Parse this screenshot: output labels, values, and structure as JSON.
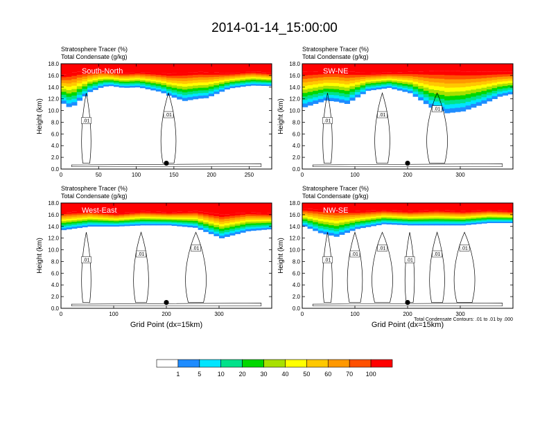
{
  "title": "2014-01-14_15:00:00",
  "footnote": "Total Condensate Contours: .01 to .01 by .000",
  "colorbar": {
    "colors": [
      "#ffffff",
      "#1e8cff",
      "#00e5ff",
      "#00e28a",
      "#00d800",
      "#a8e000",
      "#ffff00",
      "#ffc800",
      "#ff9800",
      "#ff5000",
      "#ff0000"
    ],
    "labels": [
      "1",
      "5",
      "10",
      "20",
      "30",
      "40",
      "50",
      "60",
      "70",
      "100"
    ]
  },
  "chart_data": [
    {
      "type": "heatmap",
      "title": "South-North",
      "header_lines": [
        "Stratosphere Tracer   (%)",
        "Total Condensate   (g/kg)"
      ],
      "ylabel": "Height (km)",
      "xlabel": "",
      "xlim": [
        0,
        280
      ],
      "ylim": [
        0,
        18
      ],
      "xticks": [
        0,
        50,
        100,
        150,
        200,
        250
      ],
      "yticks": [
        0,
        2,
        4,
        6,
        8,
        10,
        12,
        14,
        16,
        18
      ],
      "ytick_labels": [
        "0.0",
        "2.0",
        "4.0",
        "6.0",
        "8.0",
        "10.0",
        "12.0",
        "14.0",
        "16.0",
        "18.0"
      ],
      "contour_labels": [
        ".01",
        ".01"
      ],
      "marker": {
        "x": 140,
        "y": 1.0
      },
      "tropopause": [
        [
          0,
          16.2
        ],
        [
          20,
          16.6
        ],
        [
          50,
          16.8
        ],
        [
          80,
          16.4
        ],
        [
          100,
          16.6
        ],
        [
          140,
          16.3
        ],
        [
          180,
          16.6
        ],
        [
          220,
          16.4
        ],
        [
          250,
          16.7
        ],
        [
          280,
          16.4
        ]
      ],
      "tracer_depth": [
        [
          0,
          5
        ],
        [
          10,
          6
        ],
        [
          20,
          5
        ],
        [
          35,
          3.5
        ],
        [
          60,
          2.4
        ],
        [
          100,
          2.6
        ],
        [
          130,
          3.2
        ],
        [
          160,
          4.8
        ],
        [
          190,
          4.4
        ],
        [
          220,
          2.6
        ],
        [
          250,
          2.4
        ],
        [
          280,
          2.2
        ]
      ]
    },
    {
      "type": "heatmap",
      "title": "SW-NE",
      "header_lines": [
        "Stratosphere Tracer   (%)",
        "Total Condensate   (g/kg)"
      ],
      "ylabel": "Height (km)",
      "xlabel": "",
      "xlim": [
        0,
        400
      ],
      "ylim": [
        0,
        18
      ],
      "xticks": [
        0,
        100,
        200,
        300
      ],
      "yticks": [
        0,
        2,
        4,
        6,
        8,
        10,
        12,
        14,
        16,
        18
      ],
      "ytick_labels": [
        "0.0",
        "2.0",
        "4.0",
        "6.0",
        "8.0",
        "10.0",
        "12.0",
        "14.0",
        "16.0",
        "18.0"
      ],
      "contour_labels": [
        ".01",
        ".01",
        ".01"
      ],
      "marker": {
        "x": 200,
        "y": 1.0
      },
      "tropopause": [
        [
          0,
          16.6
        ],
        [
          60,
          16.8
        ],
        [
          120,
          16.4
        ],
        [
          200,
          16.6
        ],
        [
          260,
          16.8
        ],
        [
          330,
          16.6
        ],
        [
          400,
          16.6
        ]
      ],
      "tracer_depth": [
        [
          0,
          6
        ],
        [
          40,
          5
        ],
        [
          80,
          5.5
        ],
        [
          120,
          3
        ],
        [
          160,
          2.6
        ],
        [
          200,
          3.6
        ],
        [
          240,
          6.2
        ],
        [
          270,
          7.2
        ],
        [
          300,
          6.8
        ],
        [
          340,
          5.4
        ],
        [
          370,
          4.2
        ],
        [
          400,
          3.6
        ]
      ]
    },
    {
      "type": "heatmap",
      "title": "West-East",
      "header_lines": [
        "Stratosphere Tracer   (%)",
        "Total Condensate   (g/kg)"
      ],
      "ylabel": "Height (km)",
      "xlabel": "Grid Point (dx=15km)",
      "xlim": [
        0,
        400
      ],
      "ylim": [
        0,
        18
      ],
      "xticks": [
        0,
        100,
        200,
        300
      ],
      "yticks": [
        0,
        2,
        4,
        6,
        8,
        10,
        12,
        14,
        16,
        18
      ],
      "ytick_labels": [
        "0.0",
        "2.0",
        "4.0",
        "6.0",
        "8.0",
        "10.0",
        "12.0",
        "14.0",
        "16.0",
        "18.0"
      ],
      "contour_labels": [
        ".01",
        ".01",
        ".01"
      ],
      "marker": {
        "x": 200,
        "y": 1.0
      },
      "tropopause": [
        [
          0,
          16.4
        ],
        [
          50,
          16.6
        ],
        [
          100,
          16.2
        ],
        [
          150,
          16.6
        ],
        [
          200,
          16.4
        ],
        [
          250,
          16.6
        ],
        [
          300,
          16.0
        ],
        [
          350,
          16.4
        ],
        [
          400,
          16.2
        ]
      ],
      "tracer_depth": [
        [
          0,
          3
        ],
        [
          50,
          2.6
        ],
        [
          100,
          2.2
        ],
        [
          150,
          2.4
        ],
        [
          200,
          2.2
        ],
        [
          250,
          2.8
        ],
        [
          300,
          4.0
        ],
        [
          350,
          3.2
        ],
        [
          400,
          2.6
        ]
      ]
    },
    {
      "type": "heatmap",
      "title": "NW-SE",
      "header_lines": [
        "Stratosphere Tracer   (%)",
        "Total Condensate   (g/kg)"
      ],
      "ylabel": "Height (km)",
      "xlabel": "Grid Point (dx=15km)",
      "xlim": [
        0,
        400
      ],
      "ylim": [
        0,
        18
      ],
      "xticks": [
        0,
        100,
        200,
        300
      ],
      "yticks": [
        0,
        2,
        4,
        6,
        8,
        10,
        12,
        14,
        16,
        18
      ],
      "ytick_labels": [
        "0.0",
        "2.0",
        "4.0",
        "6.0",
        "8.0",
        "10.0",
        "12.0",
        "14.0",
        "16.0",
        "18.0"
      ],
      "contour_labels": [
        ".01",
        ".01",
        ".01",
        ".01",
        ".01",
        ".01"
      ],
      "marker": {
        "x": 200,
        "y": 1.0
      },
      "tropopause": [
        [
          0,
          17.0
        ],
        [
          50,
          16.8
        ],
        [
          100,
          16.6
        ],
        [
          150,
          16.8
        ],
        [
          200,
          16.6
        ],
        [
          250,
          16.8
        ],
        [
          300,
          16.6
        ],
        [
          350,
          16.8
        ],
        [
          400,
          16.6
        ]
      ],
      "tracer_depth": [
        [
          0,
          3
        ],
        [
          30,
          4
        ],
        [
          60,
          4.5
        ],
        [
          100,
          3
        ],
        [
          150,
          2.4
        ],
        [
          200,
          2.4
        ],
        [
          250,
          2.6
        ],
        [
          300,
          2.4
        ],
        [
          350,
          2.2
        ],
        [
          400,
          2.0
        ]
      ]
    }
  ]
}
